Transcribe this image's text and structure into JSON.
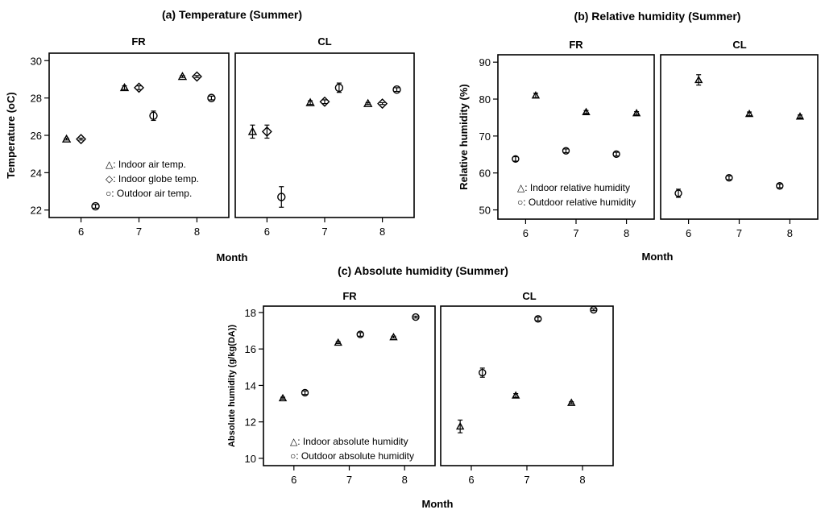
{
  "chart_data": [
    {
      "id": "a",
      "type": "scatter",
      "title": "(a) Temperature (Summer)",
      "xlabel": "Month",
      "ylabel": "Temperature (oC)",
      "ylim": [
        21.6,
        30.4
      ],
      "yticks": [
        22,
        24,
        26,
        28,
        30
      ],
      "xlim": [
        5.45,
        8.55
      ],
      "xticks": [
        6,
        7,
        8
      ],
      "facets": [
        "FR",
        "CL"
      ],
      "legend": [
        "△: Indoor air temp.",
        "◇: Indoor globe temp.",
        "○: Outdoor air temp."
      ],
      "legend_position": "lower-right of FR panel",
      "series": [
        {
          "name": "Indoor air temp.",
          "marker": "triangle",
          "offset": -0.25,
          "FR": [
            {
              "month": 6,
              "y": 25.8,
              "err": 0.05
            },
            {
              "month": 7,
              "y": 28.55,
              "err": 0.1
            },
            {
              "month": 8,
              "y": 29.15,
              "err": 0.05
            }
          ],
          "CL": [
            {
              "month": 6,
              "y": 26.2,
              "err": 0.35
            },
            {
              "month": 7,
              "y": 27.75,
              "err": 0.1
            },
            {
              "month": 8,
              "y": 27.7,
              "err": 0.05
            }
          ]
        },
        {
          "name": "Indoor globe temp.",
          "marker": "diamond",
          "offset": 0.0,
          "FR": [
            {
              "month": 6,
              "y": 25.8,
              "err": 0.05
            },
            {
              "month": 7,
              "y": 28.55,
              "err": 0.1
            },
            {
              "month": 8,
              "y": 29.15,
              "err": 0.05
            }
          ],
          "CL": [
            {
              "month": 6,
              "y": 26.2,
              "err": 0.35
            },
            {
              "month": 7,
              "y": 27.8,
              "err": 0.1
            },
            {
              "month": 8,
              "y": 27.7,
              "err": 0.05
            }
          ]
        },
        {
          "name": "Outdoor air temp.",
          "marker": "circle",
          "offset": 0.25,
          "FR": [
            {
              "month": 6,
              "y": 22.2,
              "err": 0.1
            },
            {
              "month": 7,
              "y": 27.05,
              "err": 0.25
            },
            {
              "month": 8,
              "y": 28.0,
              "err": 0.1
            }
          ],
          "CL": [
            {
              "month": 6,
              "y": 22.7,
              "err": 0.55
            },
            {
              "month": 7,
              "y": 28.55,
              "err": 0.25
            },
            {
              "month": 8,
              "y": 28.45,
              "err": 0.1
            }
          ]
        }
      ]
    },
    {
      "id": "b",
      "type": "scatter",
      "title": "(b) Relative humidity (Summer)",
      "xlabel": "Month",
      "ylabel": "Relative humidity (%)",
      "ylim": [
        47.5,
        92.0
      ],
      "yticks": [
        50,
        60,
        70,
        80,
        90
      ],
      "xlim": [
        5.45,
        8.55
      ],
      "xticks": [
        6,
        7,
        8
      ],
      "facets": [
        "FR",
        "CL"
      ],
      "legend": [
        "△: Indoor relative humidity",
        "○: Outdoor relative humidity"
      ],
      "legend_position": "lower-left of FR panel",
      "series": [
        {
          "name": "Indoor relative humidity",
          "marker": "triangle",
          "offset": 0.2,
          "FR": [
            {
              "month": 6,
              "y": 81.0,
              "err": 0.6
            },
            {
              "month": 7,
              "y": 76.5,
              "err": 0.4
            },
            {
              "month": 8,
              "y": 76.2,
              "err": 0.4
            }
          ],
          "CL": [
            {
              "month": 6,
              "y": 85.2,
              "err": 1.4
            },
            {
              "month": 7,
              "y": 76.0,
              "err": 0.5
            },
            {
              "month": 8,
              "y": 75.3,
              "err": 0.4
            }
          ]
        },
        {
          "name": "Outdoor relative humidity",
          "marker": "circle",
          "offset": -0.2,
          "FR": [
            {
              "month": 6,
              "y": 63.8,
              "err": 0.6
            },
            {
              "month": 7,
              "y": 66.0,
              "err": 0.5
            },
            {
              "month": 8,
              "y": 65.1,
              "err": 0.5
            }
          ],
          "CL": [
            {
              "month": 6,
              "y": 54.5,
              "err": 1.1
            },
            {
              "month": 7,
              "y": 58.7,
              "err": 0.5
            },
            {
              "month": 8,
              "y": 56.5,
              "err": 0.5
            }
          ]
        }
      ]
    },
    {
      "id": "c",
      "type": "scatter",
      "title": "(c) Absolute humidity (Summer)",
      "xlabel": "Month",
      "ylabel": "Absolute humidity (g/kg(DA))",
      "ylim": [
        9.6,
        18.35
      ],
      "yticks": [
        10,
        12,
        14,
        16,
        18
      ],
      "xlim": [
        5.45,
        8.55
      ],
      "xticks": [
        6,
        7,
        8
      ],
      "facets": [
        "FR",
        "CL"
      ],
      "legend": [
        "△: Indoor absolute humidity",
        "○: Outdoor absolute humidity"
      ],
      "legend_position": "lower-right of FR panel",
      "series": [
        {
          "name": "Indoor absolute humidity",
          "marker": "triangle",
          "offset": -0.2,
          "FR": [
            {
              "month": 6,
              "y": 13.3,
              "err": 0.05
            },
            {
              "month": 7,
              "y": 16.35,
              "err": 0.05
            },
            {
              "month": 8,
              "y": 16.65,
              "err": 0.05
            }
          ],
          "CL": [
            {
              "month": 6,
              "y": 11.75,
              "err": 0.35
            },
            {
              "month": 7,
              "y": 13.45,
              "err": 0.1
            },
            {
              "month": 8,
              "y": 13.05,
              "err": 0.05
            }
          ]
        },
        {
          "name": "Outdoor absolute humidity",
          "marker": "circle",
          "offset": 0.2,
          "FR": [
            {
              "month": 6,
              "y": 13.6,
              "err": 0.1
            },
            {
              "month": 7,
              "y": 16.8,
              "err": 0.1
            },
            {
              "month": 8,
              "y": 17.75,
              "err": 0.05
            }
          ],
          "CL": [
            {
              "month": 6,
              "y": 14.7,
              "err": 0.25
            },
            {
              "month": 7,
              "y": 17.65,
              "err": 0.1
            },
            {
              "month": 8,
              "y": 18.15,
              "err": 0.05
            }
          ]
        }
      ]
    }
  ]
}
